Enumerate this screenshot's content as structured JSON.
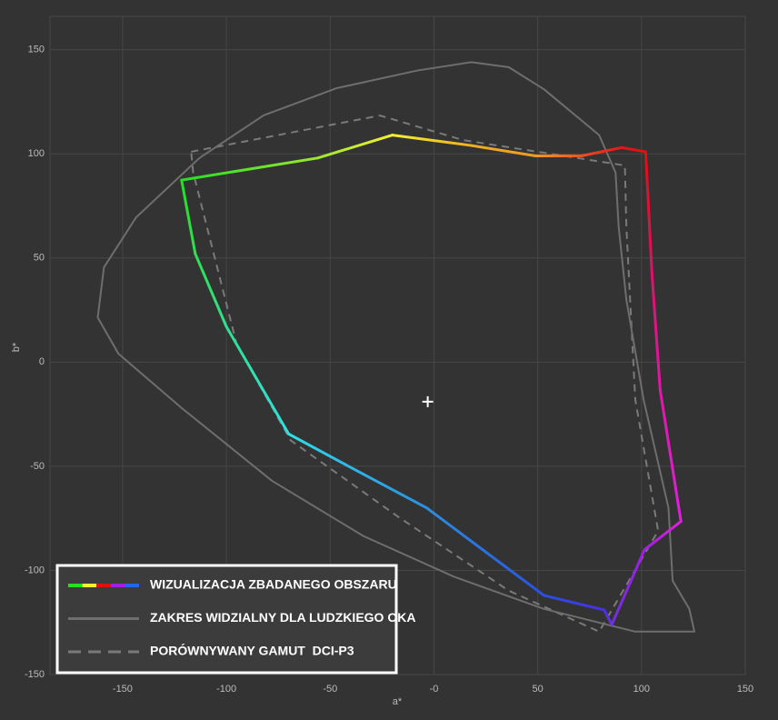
{
  "chart_data": {
    "type": "line",
    "x_label": "a*",
    "y_label": "b*",
    "xlim": [
      -185,
      150
    ],
    "ylim": [
      -150,
      166
    ],
    "xticks": [
      -150,
      -100,
      -50,
      {
        "value": 0,
        "label": "-0"
      },
      50,
      100,
      150
    ],
    "yticks": [
      -150,
      -100,
      -50,
      0,
      50,
      100,
      150
    ],
    "grid": true,
    "legend": "lower left",
    "center_marker": {
      "x": -3,
      "y": -19,
      "color": "#ffffff"
    },
    "series": [
      {
        "name": "WIZUALIZACJA ZBADANEGO OBSZARU",
        "legend_colors": [
          "#22e022",
          "#f5f030",
          "#e01010",
          "#a020e0",
          "#2266ee"
        ],
        "x": [
          -121.6,
          -56,
          -20,
          18,
          49,
          71,
          90.5,
          102,
          105,
          109,
          119,
          101.5,
          85.7,
          82,
          53,
          -3.5,
          -43,
          -70,
          -100,
          -115,
          -121.6
        ],
        "values": [
          87.4,
          98,
          109,
          104,
          99,
          99,
          103,
          101,
          43,
          -13.5,
          -76.5,
          -90,
          -126,
          -119,
          -112,
          -70,
          -49,
          -34.5,
          17,
          52,
          87.4
        ],
        "colors": [
          "#22e022",
          "#9be830",
          "#f5f030",
          "#f0b020",
          "#f09a20",
          "#f05020",
          "#e01818",
          "#e01010",
          "#e0106a",
          "#e018a8",
          "#e020e0",
          "#a020e0",
          "#7030e0",
          "#4a30e0",
          "#2a50e0",
          "#2a90e0",
          "#30b8e8",
          "#30e0e0",
          "#30e090",
          "#30e050",
          "#22e022"
        ],
        "dash": "solid",
        "width": 3
      },
      {
        "name": "ZAKRES WIDZIALNY DLA LUDZKIEGO OKA",
        "color": "#6e6e6e",
        "x": [
          18,
          -8,
          -47,
          -82,
          -113,
          -143.5,
          -159,
          -162,
          -152,
          -121.6,
          -78,
          -34,
          9.6,
          53,
          97,
          125.5,
          123,
          115,
          113,
          101,
          92.7,
          89,
          87.5,
          79.6,
          53,
          36,
          18
        ],
        "values": [
          144,
          140,
          131.5,
          118.5,
          98,
          69.5,
          45.5,
          21.4,
          4,
          -22,
          -57,
          -83.5,
          -103,
          -118.5,
          -129.4,
          -129.4,
          -118.4,
          -105,
          -70,
          -18,
          30,
          65,
          91,
          109,
          131,
          141.6,
          144
        ],
        "dash": "solid",
        "width": 2
      },
      {
        "name": "PORÓWNYWANY GAMUT  DCI-P3",
        "color": "#7a7a7a",
        "x": [
          -117,
          -26,
          14,
          92,
          92.7,
          97,
          108,
          79.6,
          36,
          -16.6,
          -69,
          -95,
          -116,
          -117
        ],
        "values": [
          101,
          118.4,
          106.6,
          94.4,
          65,
          -18,
          -81,
          -129.4,
          -109.7,
          -74.7,
          -37.6,
          8.3,
          91,
          101
        ],
        "dash": "dashed",
        "width": 2
      }
    ]
  }
}
